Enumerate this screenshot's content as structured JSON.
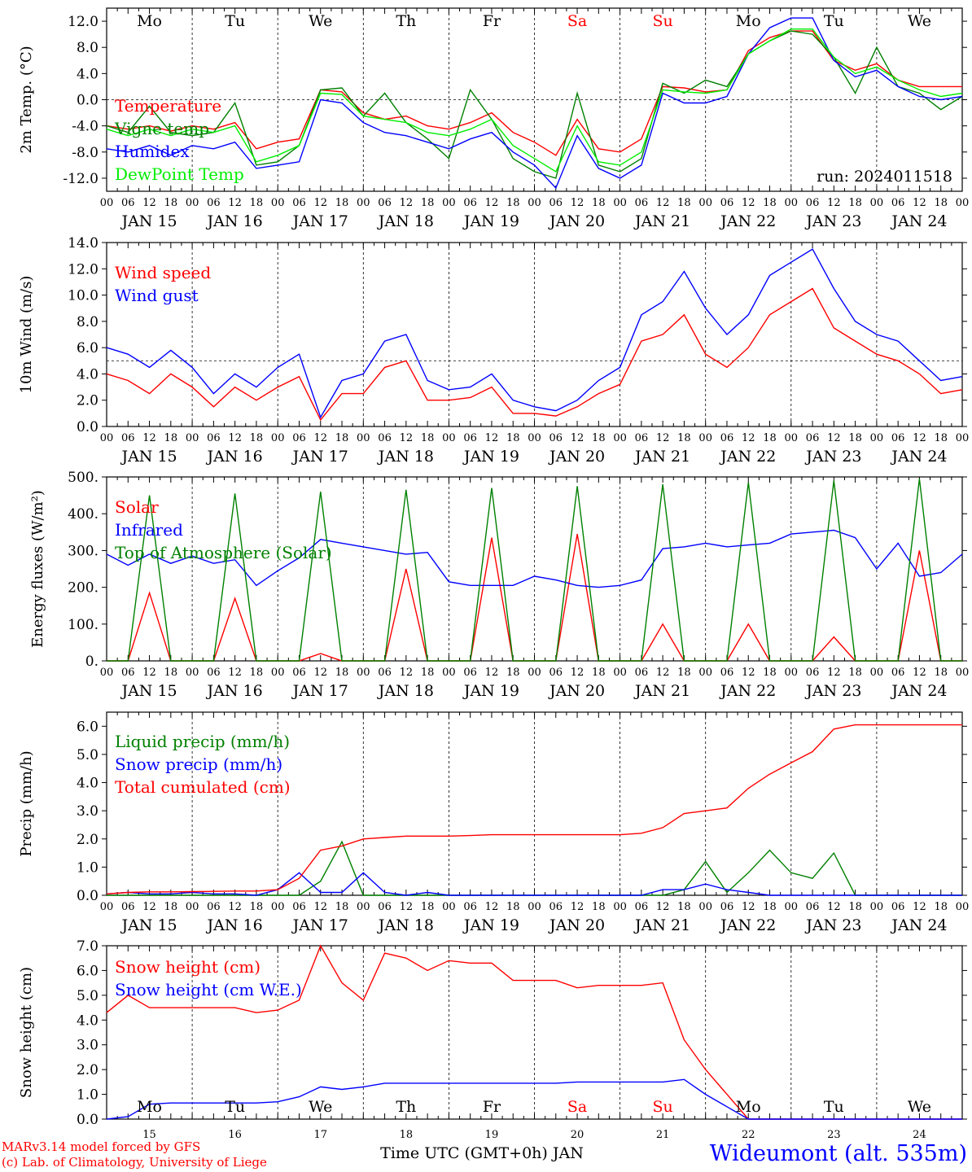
{
  "chart_data": [
    {
      "type": "line",
      "ylabel": "2m Temp. (°C)",
      "ylim": [
        -14,
        14
      ],
      "yticks": [
        -12,
        -8,
        -4,
        0,
        4,
        8,
        12
      ],
      "ytick_labels": [
        "-12.0",
        "-8.0",
        "-4.0",
        "0.0",
        "4.0",
        "8.0",
        "12.0"
      ],
      "reference_line": 0,
      "day_names": [
        "Mo",
        "Tu",
        "We",
        "Th",
        "Fr",
        "Sa",
        "Su",
        "Mo",
        "Tu",
        "We"
      ],
      "day_name_colors": [
        "#000000",
        "#000000",
        "#000000",
        "#000000",
        "#000000",
        "#ff0000",
        "#ff0000",
        "#000000",
        "#000000",
        "#000000"
      ],
      "annotation": "run: 2024011518",
      "x": [
        0,
        6,
        12,
        18,
        24,
        30,
        36,
        42,
        48,
        54,
        60,
        66,
        72,
        78,
        84,
        90,
        96,
        102,
        108,
        114,
        120,
        126,
        132,
        138,
        144,
        150,
        156,
        162,
        168,
        174,
        180,
        186,
        192,
        198,
        204,
        210,
        216,
        222,
        228,
        234,
        240
      ],
      "series": [
        {
          "name": "Temperature",
          "color": "#ff0000",
          "values": [
            -4.0,
            -4.5,
            -4.0,
            -4.8,
            -4.0,
            -4.5,
            -3.5,
            -7.5,
            -6.5,
            -6.0,
            1.5,
            1.2,
            -2.0,
            -3.0,
            -2.5,
            -4.0,
            -4.5,
            -3.5,
            -2.0,
            -5.0,
            -6.5,
            -8.5,
            -3.0,
            -7.5,
            -8.0,
            -6.0,
            2.0,
            1.8,
            1.2,
            1.5,
            7.5,
            9.5,
            10.5,
            10.5,
            6.0,
            4.5,
            5.5,
            3.0,
            2.0,
            2.0,
            2.0
          ]
        },
        {
          "name": "Vigne temp",
          "color": "#008000",
          "values": [
            -4.0,
            -5.0,
            -1.0,
            -5.0,
            -5.5,
            -5.0,
            -0.5,
            -10.0,
            -9.5,
            -7.0,
            1.5,
            1.8,
            -2.5,
            1.0,
            -3.5,
            -6.0,
            -9.0,
            1.5,
            -3.0,
            -9.0,
            -11.0,
            -12.0,
            1.0,
            -10.0,
            -11.0,
            -9.0,
            2.5,
            1.0,
            3.0,
            2.0,
            7.0,
            9.0,
            10.5,
            10.0,
            6.5,
            1.0,
            8.0,
            2.0,
            1.0,
            -1.5,
            0.5
          ]
        },
        {
          "name": "Humidex",
          "color": "#0000ff",
          "values": [
            -7.5,
            -8.0,
            -7.0,
            -8.5,
            -7.0,
            -7.5,
            -6.5,
            -10.5,
            -10.0,
            -9.5,
            0.0,
            -0.5,
            -3.5,
            -5.0,
            -5.5,
            -6.5,
            -7.5,
            -6.0,
            -5.0,
            -8.0,
            -10.0,
            -13.5,
            -5.5,
            -10.5,
            -12.0,
            -10.0,
            1.0,
            -0.5,
            -0.5,
            0.5,
            7.0,
            11.0,
            12.5,
            12.5,
            6.0,
            3.5,
            4.5,
            2.0,
            0.5,
            0.0,
            0.5
          ]
        },
        {
          "name": "DewPoint Temp",
          "color": "#00ee00",
          "values": [
            -4.5,
            -5.5,
            -4.5,
            -5.5,
            -4.5,
            -5.0,
            -4.0,
            -9.5,
            -8.5,
            -7.0,
            1.0,
            0.8,
            -2.5,
            -3.0,
            -3.5,
            -5.0,
            -5.5,
            -4.5,
            -3.0,
            -7.0,
            -9.0,
            -11.0,
            -4.0,
            -9.5,
            -10.0,
            -8.0,
            1.5,
            1.2,
            1.0,
            1.5,
            7.0,
            9.0,
            10.8,
            10.8,
            6.5,
            4.0,
            5.0,
            3.0,
            1.5,
            0.5,
            1.0
          ]
        }
      ]
    },
    {
      "type": "line",
      "ylabel": "10m Wind (m/s)",
      "ylim": [
        0,
        14
      ],
      "yticks": [
        0,
        2,
        4,
        6,
        8,
        10,
        12,
        14
      ],
      "ytick_labels": [
        "0.0",
        "2.0",
        "4.0",
        "6.0",
        "8.0",
        "10.0",
        "12.0",
        "14.0"
      ],
      "reference_line": 5,
      "x": [
        0,
        6,
        12,
        18,
        24,
        30,
        36,
        42,
        48,
        54,
        60,
        66,
        72,
        78,
        84,
        90,
        96,
        102,
        108,
        114,
        120,
        126,
        132,
        138,
        144,
        150,
        156,
        162,
        168,
        174,
        180,
        186,
        192,
        198,
        204,
        210,
        216,
        222,
        228,
        234,
        240
      ],
      "series": [
        {
          "name": "Wind speed",
          "color": "#ff0000",
          "values": [
            4.0,
            3.5,
            2.5,
            4.0,
            3.0,
            1.5,
            3.0,
            2.0,
            3.0,
            3.8,
            0.5,
            2.5,
            2.5,
            4.5,
            5.0,
            2.0,
            2.0,
            2.2,
            3.0,
            1.0,
            1.0,
            0.8,
            1.5,
            2.5,
            3.2,
            6.5,
            7.0,
            8.5,
            5.5,
            4.5,
            6.0,
            8.5,
            9.5,
            10.5,
            7.5,
            6.5,
            5.5,
            5.0,
            4.0,
            2.5,
            2.8
          ]
        },
        {
          "name": "Wind gust",
          "color": "#0000ff",
          "values": [
            6.0,
            5.5,
            4.5,
            5.8,
            4.5,
            2.5,
            4.0,
            3.0,
            4.5,
            5.5,
            0.7,
            3.5,
            4.0,
            6.5,
            7.0,
            3.5,
            2.8,
            3.0,
            4.0,
            2.0,
            1.5,
            1.2,
            2.0,
            3.5,
            4.5,
            8.5,
            9.5,
            11.8,
            9.0,
            7.0,
            8.5,
            11.5,
            12.5,
            13.5,
            10.5,
            8.0,
            7.0,
            6.5,
            5.0,
            3.5,
            3.8
          ]
        }
      ]
    },
    {
      "type": "line",
      "ylabel": "Energy fluxes (W/m²)",
      "ylim": [
        0,
        500
      ],
      "yticks": [
        0,
        100,
        200,
        300,
        400,
        500
      ],
      "ytick_labels": [
        "0.",
        "100.",
        "200.",
        "300.",
        "400.",
        "500."
      ],
      "x": [
        0,
        6,
        12,
        18,
        24,
        30,
        36,
        42,
        48,
        54,
        60,
        66,
        72,
        78,
        84,
        90,
        96,
        102,
        108,
        114,
        120,
        126,
        132,
        138,
        144,
        150,
        156,
        162,
        168,
        174,
        180,
        186,
        192,
        198,
        204,
        210,
        216,
        222,
        228,
        234,
        240
      ],
      "series": [
        {
          "name": "Solar",
          "color": "#ff0000",
          "values": [
            0,
            0,
            185,
            0,
            0,
            0,
            170,
            0,
            0,
            0,
            20,
            0,
            0,
            0,
            250,
            0,
            0,
            0,
            335,
            0,
            0,
            0,
            345,
            0,
            0,
            0,
            100,
            0,
            0,
            0,
            100,
            0,
            0,
            0,
            65,
            0,
            0,
            0,
            300,
            0,
            0
          ]
        },
        {
          "name": "Infrared",
          "color": "#0000ff",
          "values": [
            290,
            260,
            290,
            265,
            285,
            265,
            275,
            205,
            245,
            280,
            330,
            320,
            310,
            300,
            290,
            295,
            215,
            205,
            205,
            205,
            230,
            220,
            205,
            200,
            205,
            220,
            305,
            310,
            320,
            310,
            315,
            320,
            345,
            350,
            355,
            335,
            250,
            320,
            230,
            240,
            290
          ]
        },
        {
          "name": "Top of Atmosphere (Solar)",
          "color": "#008000",
          "values": [
            0,
            0,
            450,
            0,
            0,
            0,
            455,
            0,
            0,
            0,
            460,
            0,
            0,
            0,
            465,
            0,
            0,
            0,
            470,
            0,
            0,
            0,
            475,
            0,
            0,
            0,
            480,
            0,
            0,
            0,
            485,
            0,
            0,
            0,
            490,
            0,
            0,
            0,
            495,
            0,
            0
          ]
        }
      ]
    },
    {
      "type": "line",
      "ylabel": "Precip (mm/h)",
      "ylim": [
        0,
        6.5
      ],
      "yticks": [
        0,
        1,
        2,
        3,
        4,
        5,
        6
      ],
      "ytick_labels": [
        "0.0",
        "1.0",
        "2.0",
        "3.0",
        "4.0",
        "5.0",
        "6.0"
      ],
      "x": [
        0,
        6,
        12,
        18,
        24,
        30,
        36,
        42,
        48,
        54,
        60,
        66,
        72,
        78,
        84,
        90,
        96,
        102,
        108,
        114,
        120,
        126,
        132,
        138,
        144,
        150,
        156,
        162,
        168,
        174,
        180,
        186,
        192,
        198,
        204,
        210,
        216,
        222,
        228,
        234,
        240
      ],
      "series": [
        {
          "name": "Liquid precip (mm/h)",
          "color": "#008000",
          "values": [
            0,
            0,
            0,
            0,
            0,
            0,
            0,
            0,
            0,
            0,
            0.5,
            1.9,
            0,
            0,
            0,
            0,
            0,
            0,
            0,
            0,
            0,
            0,
            0,
            0,
            0,
            0,
            0,
            0.2,
            1.2,
            0.1,
            0.8,
            1.6,
            0.8,
            0.6,
            1.5,
            0,
            0,
            0,
            0,
            0,
            0
          ]
        },
        {
          "name": "Snow precip (mm/h)",
          "color": "#0000ff",
          "values": [
            0.05,
            0.1,
            0.05,
            0.05,
            0.1,
            0.05,
            0.05,
            0,
            0.2,
            0.8,
            0.1,
            0.1,
            0.8,
            0.1,
            0,
            0.1,
            0,
            0,
            0,
            0,
            0,
            0,
            0,
            0,
            0,
            0,
            0.2,
            0.2,
            0.4,
            0.2,
            0.1,
            0,
            0,
            0,
            0,
            0,
            0,
            0,
            0,
            0,
            0
          ]
        },
        {
          "name": "Total cumulated (cm)",
          "color": "#ff0000",
          "values": [
            0.05,
            0.1,
            0.12,
            0.12,
            0.13,
            0.14,
            0.15,
            0.15,
            0.2,
            0.6,
            1.6,
            1.75,
            2.0,
            2.05,
            2.1,
            2.1,
            2.1,
            2.12,
            2.15,
            2.15,
            2.15,
            2.15,
            2.15,
            2.15,
            2.15,
            2.2,
            2.4,
            2.9,
            3.0,
            3.1,
            3.8,
            4.3,
            4.7,
            5.1,
            5.9,
            6.05,
            6.05,
            6.05,
            6.05,
            6.05,
            6.05
          ]
        }
      ]
    },
    {
      "type": "line",
      "ylabel": "Snow height (cm)",
      "ylim": [
        0,
        7
      ],
      "yticks": [
        0,
        1,
        2,
        3,
        4,
        5,
        6,
        7
      ],
      "ytick_labels": [
        "0.0",
        "1.0",
        "2.0",
        "3.0",
        "4.0",
        "5.0",
        "6.0",
        "7.0"
      ],
      "day_names": [
        "Mo",
        "Tu",
        "We",
        "Th",
        "Fr",
        "Sa",
        "Su",
        "Mo",
        "Tu",
        "We"
      ],
      "day_name_colors": [
        "#000000",
        "#000000",
        "#000000",
        "#000000",
        "#000000",
        "#ff0000",
        "#ff0000",
        "#000000",
        "#000000",
        "#000000"
      ],
      "bottom_ticks": [
        "15",
        "16",
        "17",
        "18",
        "19",
        "20",
        "21",
        "22",
        "23",
        "24"
      ],
      "xlabel": "Time UTC (GMT+0h) JAN",
      "x": [
        0,
        6,
        12,
        18,
        24,
        30,
        36,
        42,
        48,
        54,
        60,
        66,
        72,
        78,
        84,
        90,
        96,
        102,
        108,
        114,
        120,
        126,
        132,
        138,
        144,
        150,
        156,
        162,
        168,
        174,
        180,
        186,
        192,
        198,
        204,
        210,
        216,
        222,
        228,
        234,
        240
      ],
      "series": [
        {
          "name": "Snow height (cm)",
          "color": "#ff0000",
          "values": [
            4.3,
            5.0,
            4.5,
            4.5,
            4.5,
            4.5,
            4.5,
            4.3,
            4.4,
            4.8,
            7.0,
            5.5,
            4.8,
            6.7,
            6.5,
            6.0,
            6.4,
            6.3,
            6.3,
            5.6,
            5.6,
            5.6,
            5.3,
            5.4,
            5.4,
            5.4,
            5.5,
            3.2,
            2.0,
            1.0,
            0,
            0,
            0,
            0,
            0,
            0,
            0,
            0,
            0,
            0,
            0
          ]
        },
        {
          "name": "Snow height (cm W.E.)",
          "color": "#0000ff",
          "values": [
            0,
            0.1,
            0.6,
            0.65,
            0.65,
            0.65,
            0.65,
            0.65,
            0.7,
            0.9,
            1.3,
            1.2,
            1.3,
            1.45,
            1.45,
            1.45,
            1.45,
            1.45,
            1.45,
            1.45,
            1.45,
            1.45,
            1.5,
            1.5,
            1.5,
            1.5,
            1.5,
            1.6,
            1.0,
            0.5,
            0,
            0,
            0,
            0,
            0,
            0,
            0,
            0,
            0,
            0,
            0
          ]
        }
      ]
    }
  ],
  "date_labels": [
    "JAN 15",
    "JAN 16",
    "JAN 17",
    "JAN 18",
    "JAN 19",
    "JAN 20",
    "JAN 21",
    "JAN 22",
    "JAN 23",
    "JAN 24"
  ],
  "hour_labels": [
    "00",
    "06",
    "12",
    "18"
  ],
  "hour_label_end": "00",
  "footer": {
    "model_line": "MARv3.14 model forced by GFS",
    "credit_line": "(c) Lab. of Climatology, University of Liege",
    "station": "Wideumont (alt. 535m)"
  }
}
